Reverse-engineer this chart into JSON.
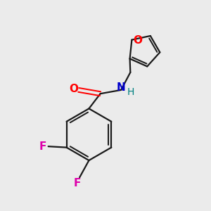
{
  "background_color": "#EBEBEB",
  "bond_color": "#1a1a1a",
  "O_color": "#ff0000",
  "N_color": "#0000cc",
  "H_color": "#008080",
  "F_color": "#dd00aa",
  "figsize": [
    3.0,
    3.0
  ],
  "dpi": 100,
  "xlim": [
    0,
    10
  ],
  "ylim": [
    0,
    10
  ]
}
